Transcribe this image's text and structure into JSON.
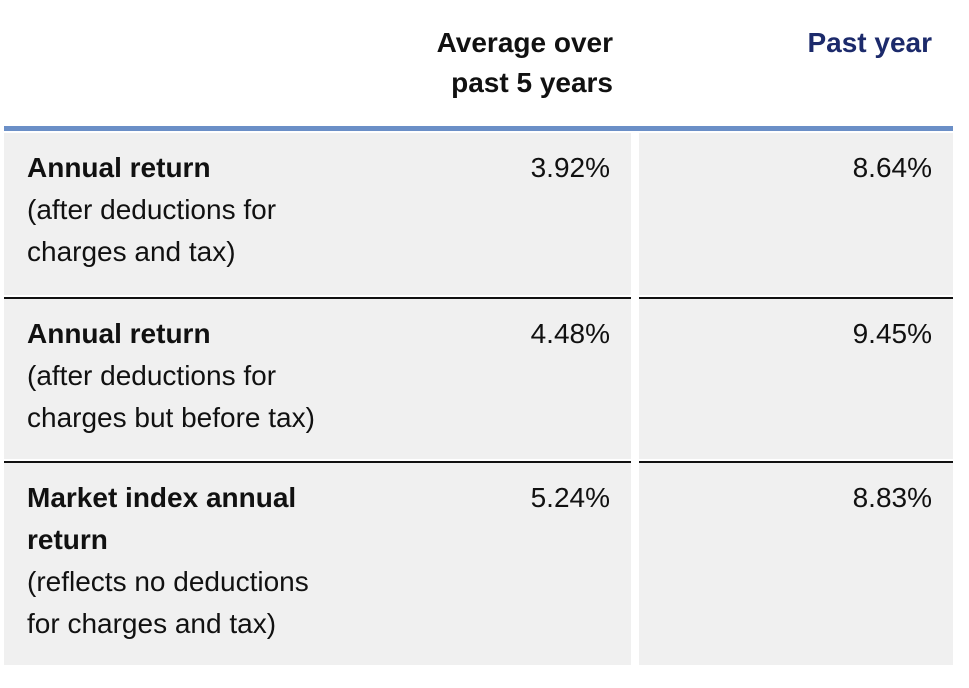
{
  "table": {
    "columns": [
      {
        "lines": [
          "Average over",
          "past 5 years"
        ]
      },
      {
        "lines": [
          "Past year"
        ]
      }
    ],
    "rows": [
      {
        "label": [
          "Annual return"
        ],
        "note": [
          "(after deductions for",
          "charges and tax)"
        ],
        "values": [
          "3.92%",
          "8.64%"
        ]
      },
      {
        "label": [
          "Annual return"
        ],
        "note": [
          "(after deductions for",
          "charges but before tax)"
        ],
        "values": [
          "4.48%",
          "9.45%"
        ]
      },
      {
        "label": [
          "Market index annual",
          "return"
        ],
        "note": [
          "(reflects no deductions",
          "for charges and tax)"
        ],
        "values": [
          "5.24%",
          "8.83%"
        ]
      }
    ]
  }
}
